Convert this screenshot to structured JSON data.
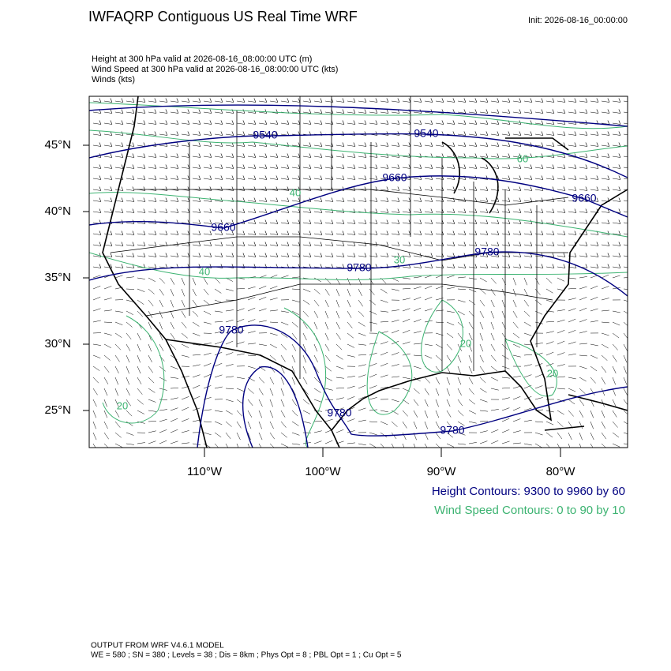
{
  "header": {
    "title": "IWFAQRP Contiguous US Real Time WRF",
    "init": "Init: 2026-08-16_00:00:00"
  },
  "fields": [
    "Height at 300 hPa valid at 2026-08-16_08:00:00 UTC   (m)",
    "Wind Speed at 300 hPa valid at 2026-08-16_08:00:00 UTC   (kts)",
    "Winds   (kts)"
  ],
  "map": {
    "lat_labels": [
      "45°N",
      "40°N",
      "35°N",
      "30°N",
      "25°N"
    ],
    "lon_labels": [
      "110°W",
      "100°W",
      "90°W",
      "80°W"
    ],
    "height_contour_labels": [
      9540,
      9540,
      9660,
      9660,
      9660,
      9780,
      9780,
      9780,
      9780,
      9780
    ],
    "wind_contour_labels": [
      60,
      40,
      40,
      20,
      20,
      20,
      30
    ]
  },
  "legend": {
    "height": "Height Contours: 9300 to 9960 by 60",
    "wind": "Wind Speed Contours: 0 to 90 by 10"
  },
  "footer": [
    "OUTPUT FROM WRF V4.6.1 MODEL",
    "WE = 580 ; SN = 380 ; Levels = 38 ; Dis = 8km ; Phys Opt = 8 ; PBL Opt = 1 ; Cu Opt = 5"
  ]
}
